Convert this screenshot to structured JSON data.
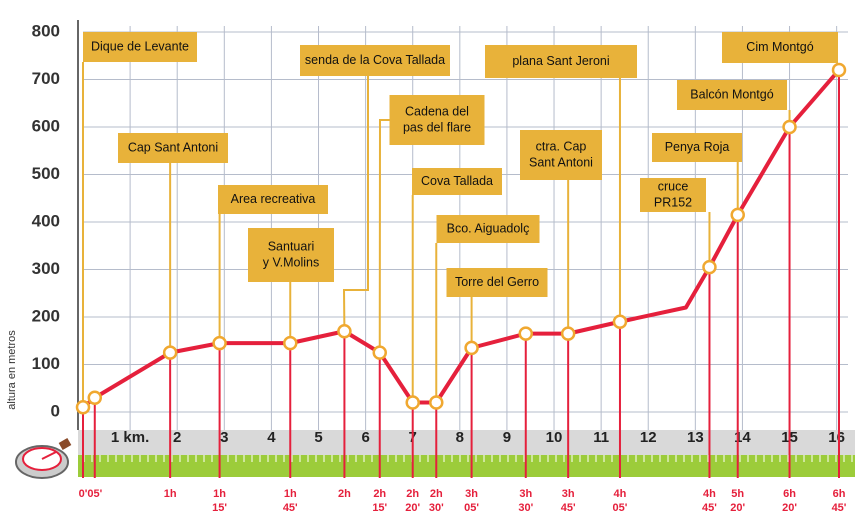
{
  "chart_data": {
    "type": "line",
    "y_label": "altura en metros",
    "color": "#e5203c",
    "x": [
      0,
      0.25,
      1.85,
      2.9,
      4.4,
      5.55,
      6.3,
      7.0,
      7.5,
      8.25,
      9.4,
      10.3,
      11.4,
      12.8,
      13.3,
      13.9,
      15.0,
      16.05
    ],
    "values": [
      10,
      30,
      125,
      145,
      145,
      170,
      125,
      20,
      20,
      135,
      165,
      165,
      190,
      220,
      305,
      415,
      600,
      720
    ],
    "times": [
      [
        "0'"
      ],
      [
        "05'"
      ],
      [
        "1h"
      ],
      [
        "1h",
        "15'"
      ],
      [
        "1h",
        "45'"
      ],
      [
        "2h"
      ],
      [
        "2h",
        "15'"
      ],
      [
        "2h",
        "20'"
      ],
      [
        "2h",
        "30'"
      ],
      [
        "3h",
        "05'"
      ],
      [
        "3h",
        "30'"
      ],
      [
        "3h",
        "45'"
      ],
      [
        "4h",
        "05'"
      ],
      null,
      [
        "4h",
        "45'"
      ],
      [
        "5h",
        "20'"
      ],
      [
        "6h",
        "20'"
      ],
      [
        "6h",
        "45'"
      ]
    ],
    "places": [
      [
        "Dique de Levante"
      ],
      null,
      [
        "Cap Sant Antoni"
      ],
      [
        "Area recreativa"
      ],
      [
        "Santuari",
        "y V.Molins"
      ],
      [
        "senda de la Cova Tallada"
      ],
      [
        "Cadena del",
        "pas del flare"
      ],
      [
        "Cova Tallada"
      ],
      [
        "Bco. Aiguadolç"
      ],
      [
        "Torre del Gerro"
      ],
      null,
      [
        "ctra. Cap",
        "Sant Antoni"
      ],
      [
        "plana Sant Jeroni"
      ],
      null,
      [
        "cruce",
        "PR152"
      ],
      [
        "Penya Roja"
      ],
      [
        "Balcón Montgó"
      ],
      [
        "Cim Montgó"
      ]
    ],
    "xlim": [
      0,
      16.05
    ],
    "ylim": [
      0,
      800
    ],
    "xticks": [
      {
        "value": 1,
        "label": "1 km."
      },
      2,
      3,
      4,
      5,
      6,
      7,
      8,
      9,
      10,
      11,
      12,
      13,
      14,
      15,
      16
    ],
    "yticks": [
      0,
      100,
      200,
      300,
      400,
      500,
      600,
      700,
      800
    ],
    "grid": true
  }
}
